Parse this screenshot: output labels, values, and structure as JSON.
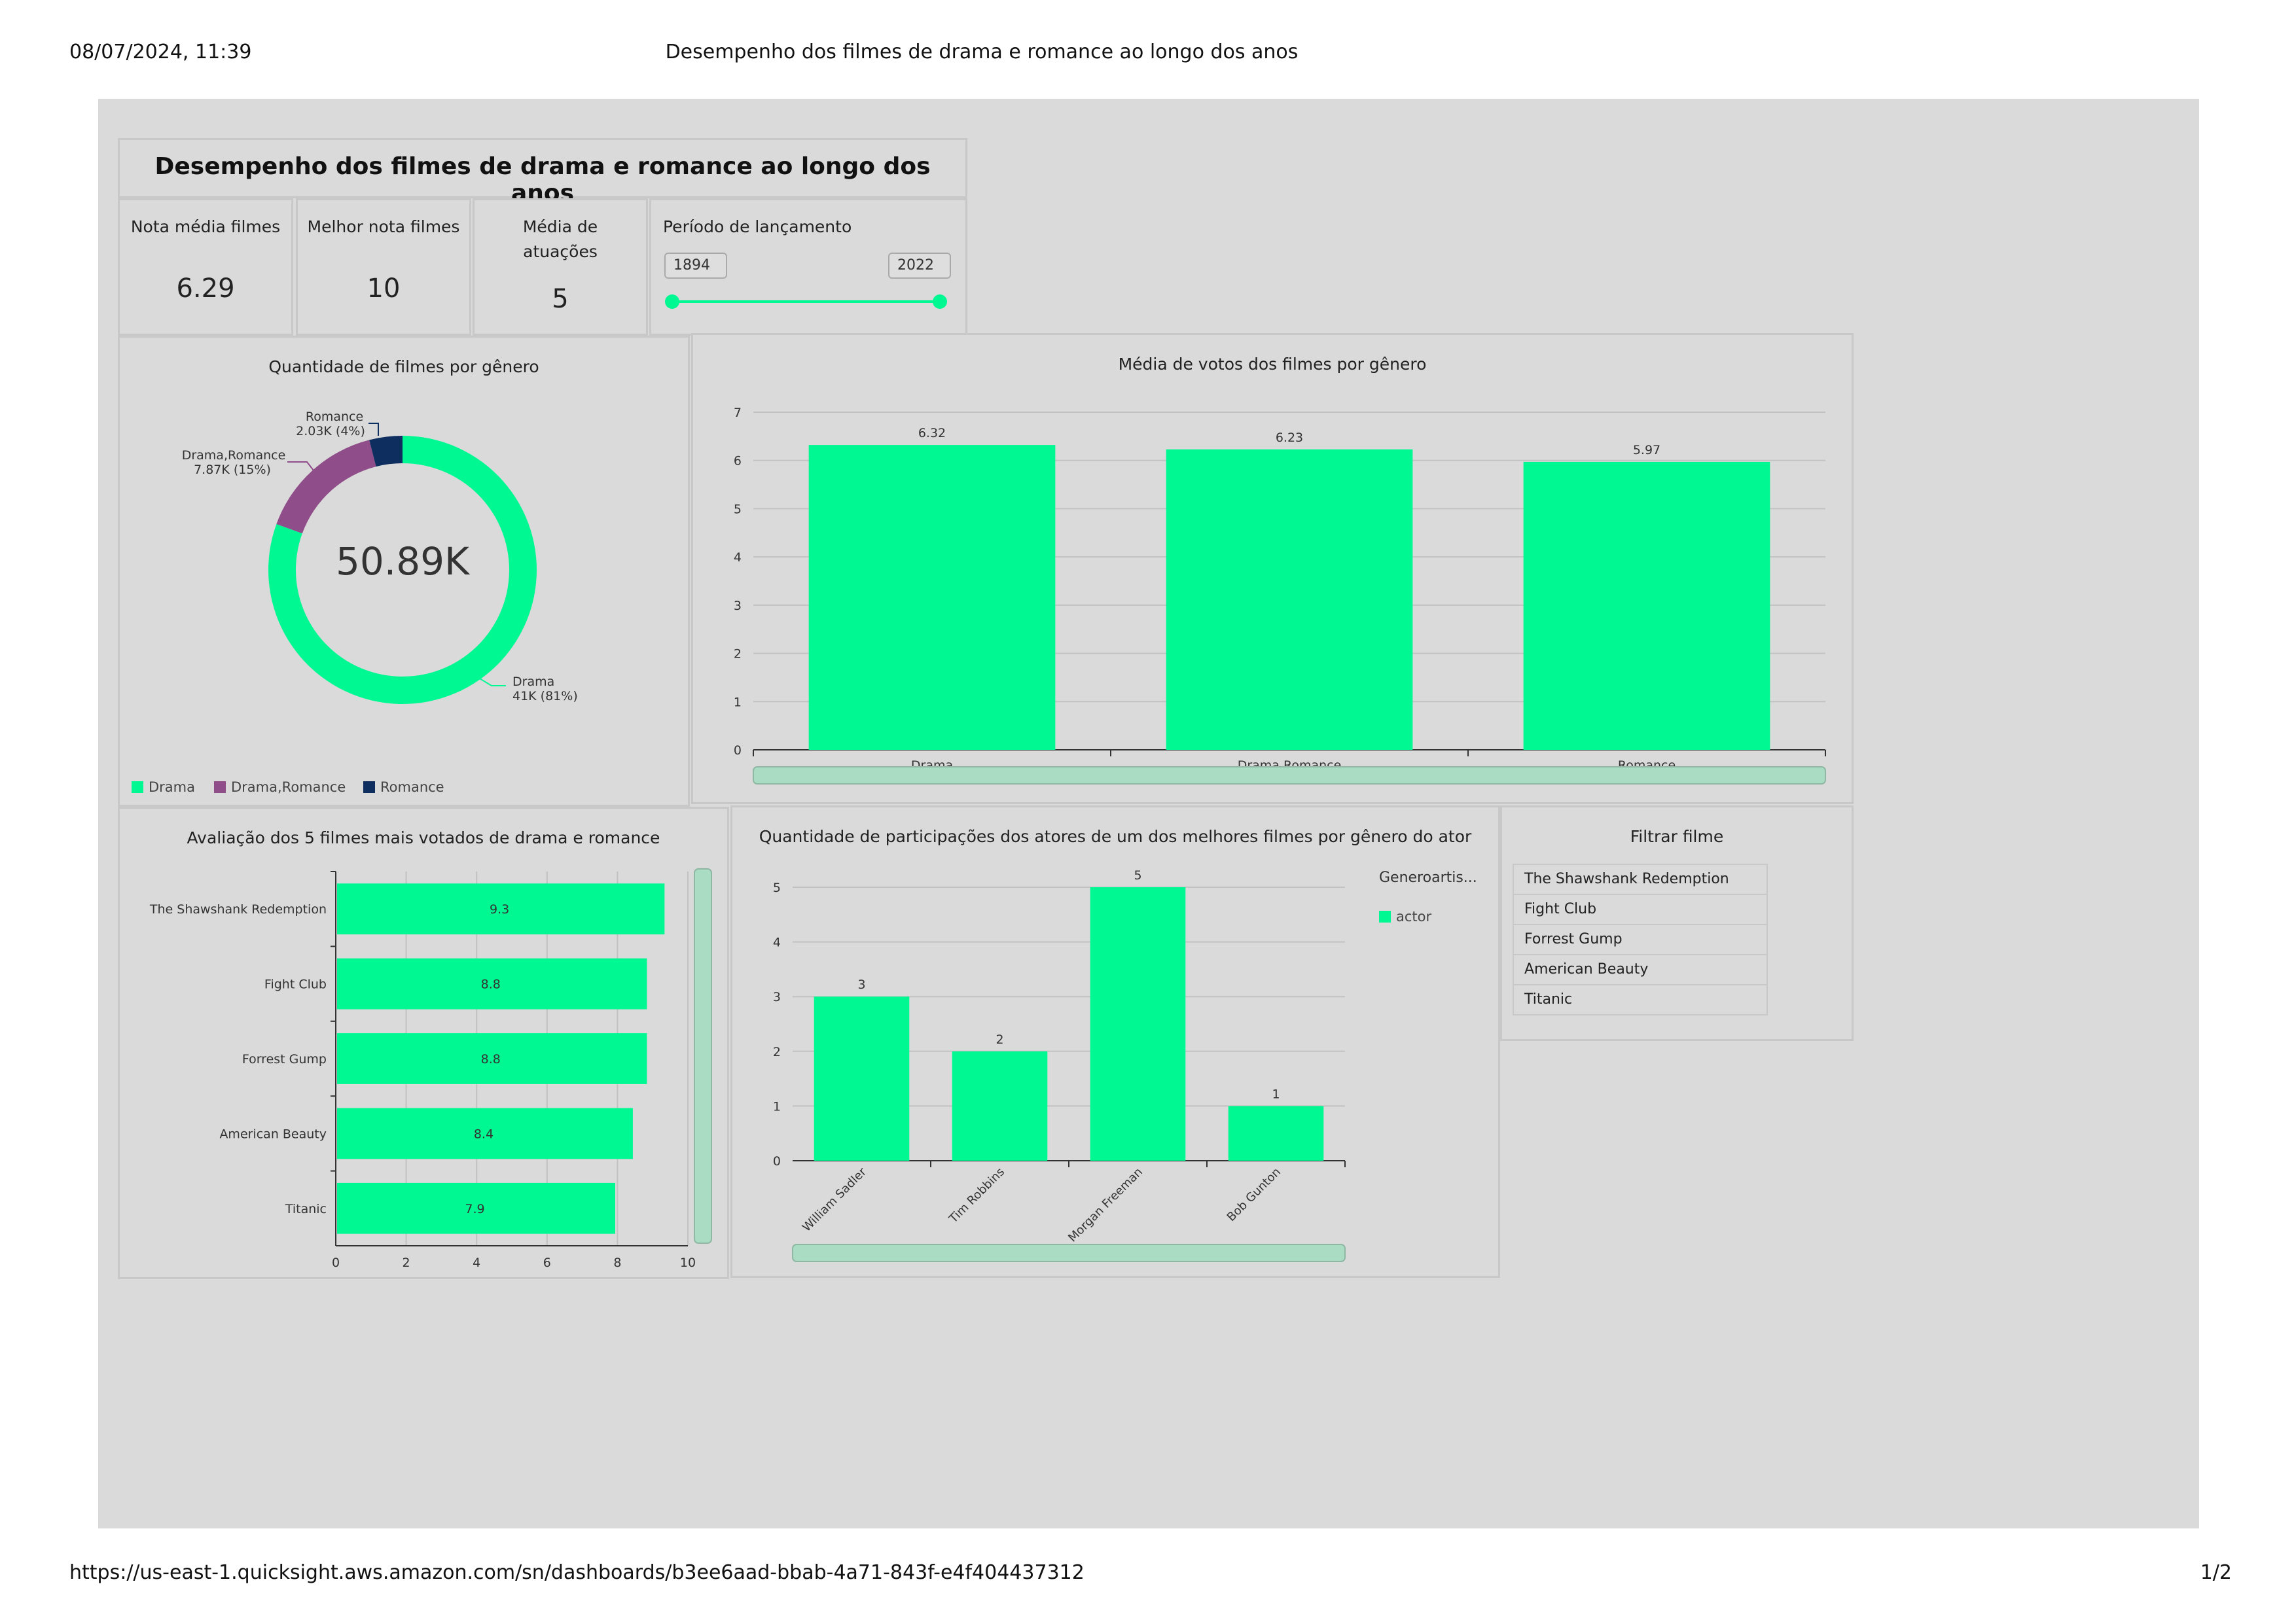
{
  "print_header": {
    "datetime": "08/07/2024, 11:39",
    "doc_title": "Desempenho dos filmes de drama e romance ao longo dos anos"
  },
  "print_footer": {
    "url": "https://us-east-1.quicksight.aws.amazon.com/sn/dashboards/b3ee6aad-bbab-4a71-843f-e4f404437312",
    "page": "1/2"
  },
  "dashboard_title": "Desempenho dos filmes de drama e romance ao longo dos anos",
  "kpis": [
    {
      "label": "Nota média filmes",
      "value": "6.29"
    },
    {
      "label": "Melhor nota filmes",
      "value": "10"
    },
    {
      "label": "Média de atuações",
      "value": "5"
    }
  ],
  "period": {
    "label": "Período de lançamento",
    "start": "1894",
    "end": "2022"
  },
  "colors": {
    "accent": "#00f893",
    "purple": "#8f4d8a",
    "navy": "#0d2e5e",
    "panel_bg": "#dadada",
    "scroll": "#a9dcc3"
  },
  "chart_data": [
    {
      "type": "pie",
      "title": "Quantidade de filmes por gênero",
      "center_label": "50.89K",
      "categories": [
        "Drama",
        "Drama,Romance",
        "Romance"
      ],
      "values": [
        41000,
        7870,
        2030
      ],
      "slice_labels": [
        {
          "name": "Drama",
          "value": "41K (81%)"
        },
        {
          "name": "Drama,Romance",
          "value": "7.87K (15%)"
        },
        {
          "name": "Romance",
          "value": "2.03K (4%)"
        }
      ],
      "legend": [
        "Drama",
        "Drama,Romance",
        "Romance"
      ],
      "legend_position": "bottom-left"
    },
    {
      "type": "bar",
      "title": "Média de votos dos filmes por gênero",
      "categories": [
        "Drama",
        "Drama,Romance",
        "Romance"
      ],
      "values": [
        6.32,
        6.23,
        5.97
      ],
      "value_labels": [
        "6.32",
        "6.23",
        "5.97"
      ],
      "ylim": [
        0,
        7
      ],
      "yticks": [
        "0",
        "1",
        "2",
        "3",
        "4",
        "5",
        "6",
        "7"
      ],
      "grid": true
    },
    {
      "type": "bar",
      "orientation": "horizontal",
      "title": "Avaliação dos 5 filmes mais votados de drama e romance",
      "categories": [
        "The Shawshank Redemption",
        "Fight Club",
        "Forrest Gump",
        "American Beauty",
        "Titanic"
      ],
      "values": [
        9.3,
        8.8,
        8.8,
        8.4,
        7.9
      ],
      "value_labels": [
        "9.3",
        "8.8",
        "8.8",
        "8.4",
        "7.9"
      ],
      "xlim": [
        0,
        10
      ],
      "xticks": [
        "0",
        "2",
        "4",
        "6",
        "8",
        "10"
      ],
      "grid": true
    },
    {
      "type": "bar",
      "title": "Quantidade de participações dos atores de um dos melhores filmes por gênero do ator",
      "categories": [
        "William Sadler",
        "Tim Robbins",
        "Morgan Freeman",
        "Bob Gunton"
      ],
      "values": [
        3,
        2,
        5,
        1
      ],
      "value_labels": [
        "3",
        "2",
        "5",
        "1"
      ],
      "ylim": [
        0,
        5
      ],
      "yticks": [
        "0",
        "1",
        "2",
        "3",
        "4",
        "5"
      ],
      "legend_title": "Generoartis...",
      "legend": [
        "actor"
      ],
      "legend_position": "right",
      "grid": true
    }
  ],
  "filter": {
    "title": "Filtrar filme",
    "items": [
      "The Shawshank Redemption",
      "Fight Club",
      "Forrest Gump",
      "American Beauty",
      "Titanic"
    ]
  }
}
